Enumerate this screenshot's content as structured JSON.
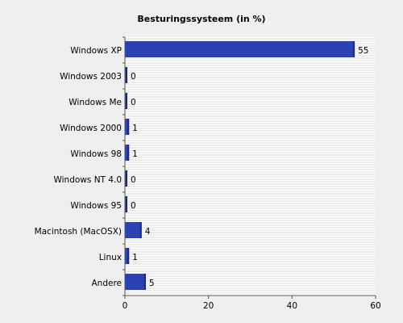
{
  "chart_data": {
    "type": "bar",
    "orientation": "horizontal",
    "title": "Besturingssysteem (in %)",
    "xlabel": "",
    "ylabel": "",
    "categories": [
      "Windows XP",
      "Windows 2003",
      "Windows Me",
      "Windows 2000",
      "Windows 98",
      "Windows NT 4.0",
      "Windows 95",
      "Macintosh (MacOSX)",
      "Linux",
      "Andere"
    ],
    "values": [
      55,
      0,
      0,
      1,
      1,
      0,
      0,
      4,
      1,
      5
    ],
    "value_labels": [
      "55",
      "0",
      "0",
      "1",
      "1",
      "0",
      "0",
      "4",
      "1",
      "5"
    ],
    "xlim": [
      0,
      60
    ],
    "xticks": [
      0,
      20,
      40,
      60
    ],
    "xtick_labels": [
      "0",
      "20",
      "40",
      "60"
    ],
    "grid": true,
    "colors": {
      "bar": "#2c41b4",
      "bar_shade": "#1a2a80",
      "plot_background": "#ffffff",
      "grid": "#d8d8d8",
      "page_background": "#efefef"
    }
  }
}
